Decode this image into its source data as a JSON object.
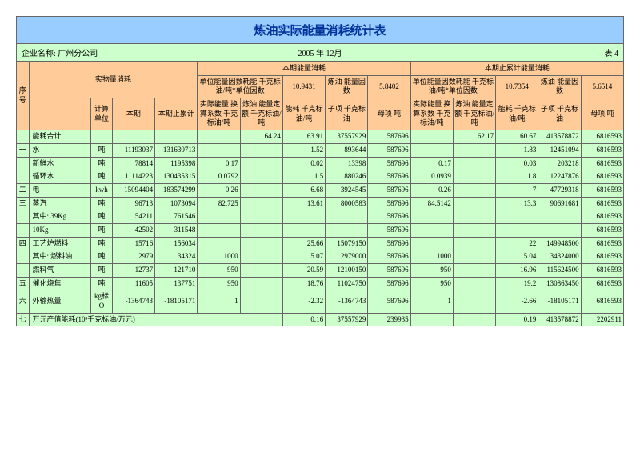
{
  "title": "炼油实际能量消耗统计表",
  "meta": {
    "company_label": "企业名称: 广州分公司",
    "date": "2005 年   12月",
    "sheet": "表    4"
  },
  "headers": {
    "seq": "序号",
    "physical": "实物量消耗",
    "current": "本期能量消耗",
    "cumulative": "本期止累计能量消耗",
    "unit_factor": "单位能量因数耗能\n千克标油/吨*单位因数",
    "unit_factor2": "单位能量因数耗能\n千克标油/吨*单位因数",
    "cur_v1": "10.9431",
    "cur_v2": "炼油\n能量因数",
    "cur_v3": "5.8402",
    "cum_v1": "10.7354",
    "cum_v2": "炼油\n能量因数",
    "cum_v3": "5.6514",
    "calc_unit": "计算单位",
    "this_period": "本期",
    "this_cum": "本期止累计",
    "conv": "实际能量\n换算系数\n千克标油/吨",
    "quota": "炼油\n能量定额\n千克标油/吨",
    "ec": "能耗\n千克标油/吨",
    "sub": "子项\n千克标油",
    "den": "母项\n吨"
  },
  "rows": [
    {
      "seq": "",
      "name": "能耗合计",
      "unit": "",
      "p1": "",
      "p2": "",
      "c1": "",
      "c2": "64.24",
      "c3": "63.91",
      "c4": "37557929",
      "c5": "587696",
      "m1": "",
      "m2": "62.17",
      "m3": "60.67",
      "m4": "413578872",
      "m5": "6816593"
    },
    {
      "seq": "一",
      "name": "水",
      "unit": "吨",
      "p1": "11193037",
      "p2": "131630713",
      "c1": "",
      "c2": "",
      "c3": "1.52",
      "c4": "893644",
      "c5": "587696",
      "m1": "",
      "m2": "",
      "m3": "1.83",
      "m4": "12451094",
      "m5": "6816593"
    },
    {
      "seq": "",
      "name": "新鲜水",
      "unit": "吨",
      "p1": "78814",
      "p2": "1195398",
      "c1": "0.17",
      "c2": "",
      "c3": "0.02",
      "c4": "13398",
      "c5": "587696",
      "m1": "0.17",
      "m2": "",
      "m3": "0.03",
      "m4": "203218",
      "m5": "6816593"
    },
    {
      "seq": "",
      "name": "循环水",
      "unit": "吨",
      "p1": "11114223",
      "p2": "130435315",
      "c1": "0.0792",
      "c2": "",
      "c3": "1.5",
      "c4": "880246",
      "c5": "587696",
      "m1": "0.0939",
      "m2": "",
      "m3": "1.8",
      "m4": "12247876",
      "m5": "6816593"
    },
    {
      "seq": "二",
      "name": "电",
      "unit": "kwh",
      "p1": "15094404",
      "p2": "183574299",
      "c1": "0.26",
      "c2": "",
      "c3": "6.68",
      "c4": "3924545",
      "c5": "587696",
      "m1": "0.26",
      "m2": "",
      "m3": "7",
      "m4": "47729318",
      "m5": "6816593"
    },
    {
      "seq": "三",
      "name": "蒸汽",
      "unit": "吨",
      "p1": "96713",
      "p2": "1073094",
      "c1": "82.725",
      "c2": "",
      "c3": "13.61",
      "c4": "8000583",
      "c5": "587696",
      "m1": "84.5142",
      "m2": "",
      "m3": "13.3",
      "m4": "90691681",
      "m5": "6816593"
    },
    {
      "seq": "",
      "name": "其中: 39Kg",
      "unit": "吨",
      "p1": "54211",
      "p2": "761546",
      "c1": "",
      "c2": "",
      "c3": "",
      "c4": "",
      "c5": "587696",
      "m1": "",
      "m2": "",
      "m3": "",
      "m4": "",
      "m5": "6816593"
    },
    {
      "seq": "",
      "name": "10Kg",
      "unit": "吨",
      "p1": "42502",
      "p2": "311548",
      "c1": "",
      "c2": "",
      "c3": "",
      "c4": "",
      "c5": "587696",
      "m1": "",
      "m2": "",
      "m3": "",
      "m4": "",
      "m5": "6816593"
    },
    {
      "seq": "四",
      "name": "工艺炉燃料",
      "unit": "吨",
      "p1": "15716",
      "p2": "156034",
      "c1": "",
      "c2": "",
      "c3": "25.66",
      "c4": "15079150",
      "c5": "587696",
      "m1": "",
      "m2": "",
      "m3": "22",
      "m4": "149948500",
      "m5": "6816593"
    },
    {
      "seq": "",
      "name": "其中: 燃料油",
      "unit": "吨",
      "p1": "2979",
      "p2": "34324",
      "c1": "1000",
      "c2": "",
      "c3": "5.07",
      "c4": "2979000",
      "c5": "587696",
      "m1": "1000",
      "m2": "",
      "m3": "5.04",
      "m4": "34324000",
      "m5": "6816593"
    },
    {
      "seq": "",
      "name": "燃料气",
      "unit": "吨",
      "p1": "12737",
      "p2": "121710",
      "c1": "950",
      "c2": "",
      "c3": "20.59",
      "c4": "12100150",
      "c5": "587696",
      "m1": "950",
      "m2": "",
      "m3": "16.96",
      "m4": "115624500",
      "m5": "6816593"
    },
    {
      "seq": "五",
      "name": "催化烧焦",
      "unit": "吨",
      "p1": "11605",
      "p2": "137751",
      "c1": "950",
      "c2": "",
      "c3": "18.76",
      "c4": "11024750",
      "c5": "587696",
      "m1": "950",
      "m2": "",
      "m3": "19.2",
      "m4": "130863450",
      "m5": "6816593"
    },
    {
      "seq": "六",
      "name": "外输热量",
      "unit": "kg标O",
      "p1": "-1364743",
      "p2": "-18105171",
      "c1": "1",
      "c2": "",
      "c3": "-2.32",
      "c4": "-1364743",
      "c5": "587696",
      "m1": "1",
      "m2": "",
      "m3": "-2.66",
      "m4": "-18105171",
      "m5": "6816593"
    },
    {
      "seq": "七",
      "name_wide": "万元产值能耗(10³千克标油/万元)",
      "c3": "0.16",
      "c4": "37557929",
      "c5": "239935",
      "m3": "0.19",
      "m4": "413578872",
      "m5": "2202911"
    }
  ]
}
